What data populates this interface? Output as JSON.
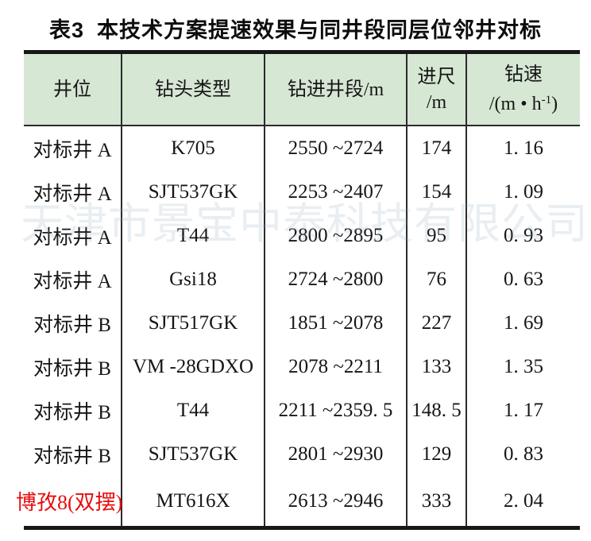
{
  "title": {
    "label": "表3",
    "text": "本技术方案提速效果与同井段同层位邻井对标"
  },
  "watermark": {
    "text": "天津市景宝中泰科技有限公司"
  },
  "table": {
    "header_bg": "#d6e7d4",
    "highlight_color": "#e60d0d",
    "header": {
      "well_position": "井位",
      "bit_type": "钻头类型",
      "drilling_interval": "钻进井段/m",
      "footage_line1": "进尺",
      "footage_line2": "/m",
      "rop_line1": "钻速",
      "rop_line2_prefix": "/(m • h",
      "rop_sup": "-1",
      "rop_line2_suffix": ")"
    },
    "rows": [
      {
        "well": "对标井 A",
        "bit": "K705",
        "interval": "2550 ~2724",
        "footage": "174",
        "rop": "1. 16"
      },
      {
        "well": "对标井 A",
        "bit": "SJT537GK",
        "interval": "2253 ~2407",
        "footage": "154",
        "rop": "1. 09"
      },
      {
        "well": "对标井 A",
        "bit": "T44",
        "interval": "2800 ~2895",
        "footage": "95",
        "rop": "0. 93"
      },
      {
        "well": "对标井 A",
        "bit": "Gsi18",
        "interval": "2724 ~2800",
        "footage": "76",
        "rop": "0. 63"
      },
      {
        "well": "对标井 B",
        "bit": "SJT517GK",
        "interval": "1851 ~2078",
        "footage": "227",
        "rop": "1. 69"
      },
      {
        "well": "对标井 B",
        "bit": "VM -28GDXO",
        "interval": "2078 ~2211",
        "footage": "133",
        "rop": "1. 35"
      },
      {
        "well": "对标井 B",
        "bit": "T44",
        "interval": "2211 ~2359. 5",
        "footage": "148. 5",
        "rop": "1. 17"
      },
      {
        "well": "对标井 B",
        "bit": "SJT537GK",
        "interval": "2801 ~2930",
        "footage": "129",
        "rop": "0. 83"
      },
      {
        "well": "博孜8(双摆)",
        "bit": "MT616X",
        "interval": "2613 ~2946",
        "footage": "333",
        "rop": "2. 04"
      }
    ]
  }
}
